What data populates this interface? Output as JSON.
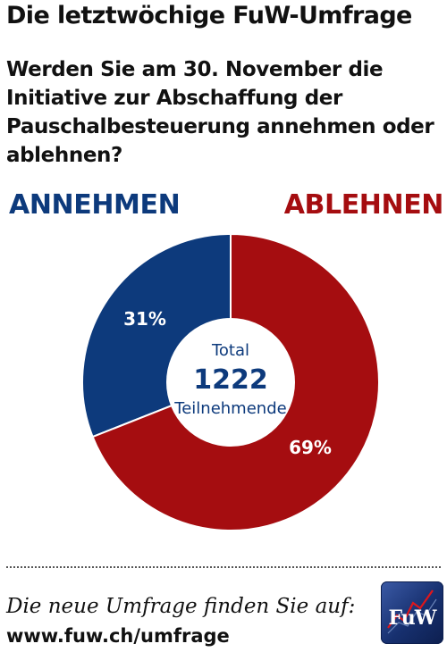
{
  "title": "Die letztwöchige FuW-Umfrage",
  "question": "Werden Sie am 30. November die Initiative zur Abschaffung der Pauschalbesteuerung annehmen oder ablehnen?",
  "colors": {
    "annehmen": "#0d3a7c",
    "ablehnen": "#a50d10",
    "center_text": "#0d3a7c"
  },
  "chart_data": {
    "type": "pie",
    "categories": [
      "ANNEHMEN",
      "ABLEHNEN"
    ],
    "values": [
      31,
      69
    ],
    "value_labels": [
      "31%",
      "69%"
    ],
    "center": {
      "line1": "Total",
      "total": "1222",
      "line3": "Teilnehmende"
    }
  },
  "footer": {
    "text": "Die neue Umfrage finden Sie auf:",
    "url": "www.fuw.ch/umfrage",
    "logo_text": "FuW"
  }
}
